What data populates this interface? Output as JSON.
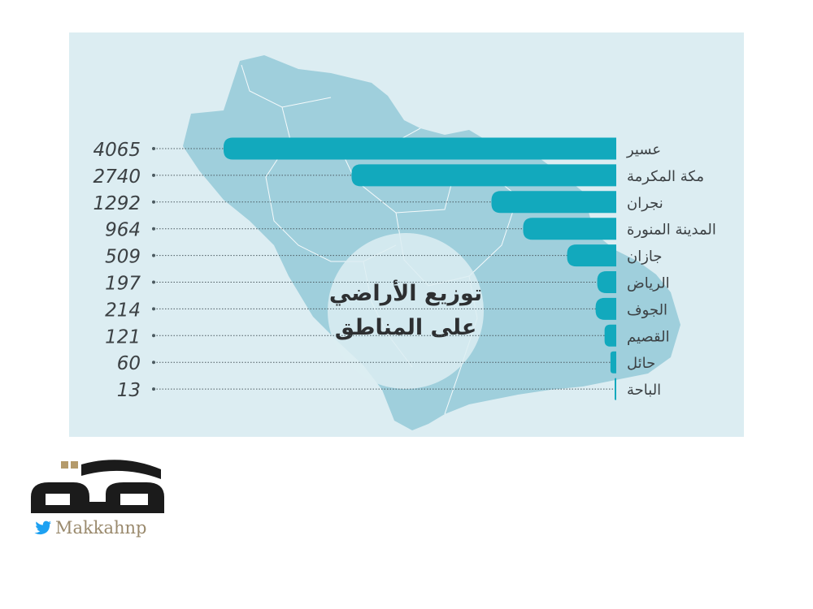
{
  "chart_data": {
    "type": "bar",
    "orientation": "horizontal",
    "title": "توزيع الأراضي على المناطق",
    "categories": [
      "عسير",
      "مكة المكرمة",
      "نجران",
      "المدينة المنورة",
      "جازان",
      "الرياض",
      "الجوف",
      "القصيم",
      "حائل",
      "الباحة"
    ],
    "values": [
      4065,
      2740,
      1292,
      964,
      509,
      197,
      214,
      121,
      60,
      13
    ],
    "value_labels": [
      "4065",
      "2740",
      "1292",
      "964",
      "509",
      "197",
      "214",
      "121",
      "60",
      "13"
    ],
    "grid": false,
    "legend": "none",
    "colors": {
      "bar": "#12a9bd",
      "panel": "#dcedf2",
      "map": "#9fcfdc",
      "circle": "#dcedf2",
      "leader": "#4b5a60",
      "label": "#3c4144"
    }
  },
  "title_lines": [
    "توزيع الأراضي",
    "على المناطق"
  ],
  "brand": {
    "handle": "Makkahnp",
    "bird_icon": "twitter-bird-icon",
    "colors": {
      "logo": "#1b1b1b",
      "accent": "#b49a6a",
      "bird": "#1da1f2"
    }
  }
}
